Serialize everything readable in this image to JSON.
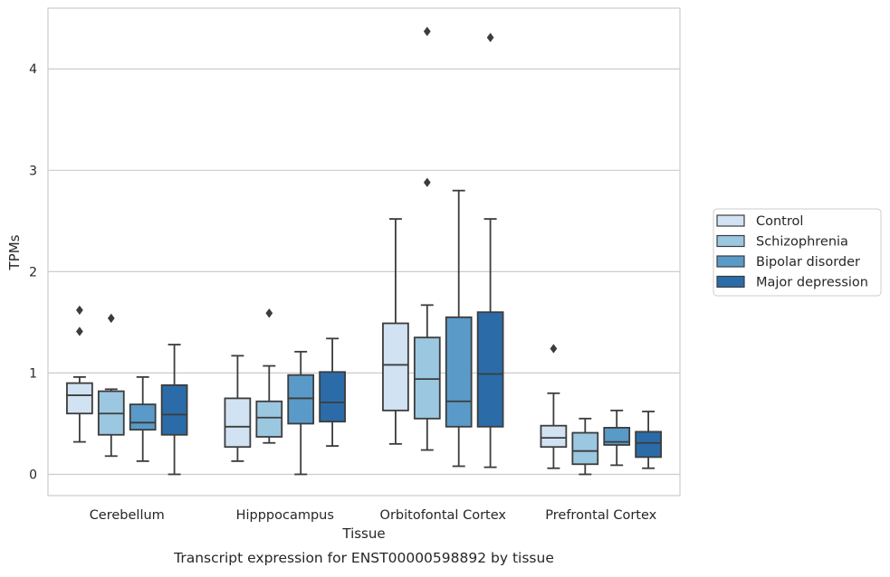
{
  "chart_data": {
    "type": "box",
    "title": "",
    "xlabel": "Tissue",
    "ylabel": "TPMs",
    "caption": "Transcript expression for ENST00000598892 by tissue",
    "ylim": [
      -0.21,
      4.6
    ],
    "yticks": [
      0,
      1,
      2,
      3,
      4
    ],
    "grid": "horizontal",
    "legend_position": "right",
    "categories": [
      "Cerebellum",
      "Hipppocampus",
      "Orbitofontal Cortex",
      "Prefrontal Cortex"
    ],
    "series": [
      {
        "name": "Control",
        "color": "#d1e2f2",
        "boxes": [
          {
            "whisker_low": 0.32,
            "q1": 0.6,
            "median": 0.78,
            "q3": 0.9,
            "whisker_high": 0.96,
            "outliers": [
              1.62,
              1.41
            ]
          },
          {
            "whisker_low": 0.13,
            "q1": 0.27,
            "median": 0.47,
            "q3": 0.75,
            "whisker_high": 1.17,
            "outliers": []
          },
          {
            "whisker_low": 0.3,
            "q1": 0.63,
            "median": 1.08,
            "q3": 1.49,
            "whisker_high": 2.52,
            "outliers": []
          },
          {
            "whisker_low": 0.06,
            "q1": 0.27,
            "median": 0.36,
            "q3": 0.48,
            "whisker_high": 0.8,
            "outliers": [
              1.24
            ]
          }
        ]
      },
      {
        "name": "Schizophrenia",
        "color": "#9bc7e0",
        "boxes": [
          {
            "whisker_low": 0.18,
            "q1": 0.39,
            "median": 0.6,
            "q3": 0.82,
            "whisker_high": 0.84,
            "outliers": [
              1.54
            ]
          },
          {
            "whisker_low": 0.31,
            "q1": 0.37,
            "median": 0.56,
            "q3": 0.72,
            "whisker_high": 1.07,
            "outliers": [
              1.59
            ]
          },
          {
            "whisker_low": 0.24,
            "q1": 0.55,
            "median": 0.94,
            "q3": 1.35,
            "whisker_high": 1.67,
            "outliers": [
              2.88,
              4.37
            ]
          },
          {
            "whisker_low": 0.0,
            "q1": 0.1,
            "median": 0.23,
            "q3": 0.41,
            "whisker_high": 0.55,
            "outliers": []
          }
        ]
      },
      {
        "name": "Bipolar disorder",
        "color": "#5a9ac8",
        "boxes": [
          {
            "whisker_low": 0.13,
            "q1": 0.44,
            "median": 0.51,
            "q3": 0.69,
            "whisker_high": 0.96,
            "outliers": []
          },
          {
            "whisker_low": 0.0,
            "q1": 0.5,
            "median": 0.75,
            "q3": 0.98,
            "whisker_high": 1.21,
            "outliers": []
          },
          {
            "whisker_low": 0.08,
            "q1": 0.47,
            "median": 0.72,
            "q3": 1.55,
            "whisker_high": 2.8,
            "outliers": []
          },
          {
            "whisker_low": 0.09,
            "q1": 0.29,
            "median": 0.32,
            "q3": 0.46,
            "whisker_high": 0.63,
            "outliers": []
          }
        ]
      },
      {
        "name": "Major depression",
        "color": "#2b6ca8",
        "boxes": [
          {
            "whisker_low": 0.0,
            "q1": 0.39,
            "median": 0.59,
            "q3": 0.88,
            "whisker_high": 1.28,
            "outliers": []
          },
          {
            "whisker_low": 0.28,
            "q1": 0.52,
            "median": 0.71,
            "q3": 1.01,
            "whisker_high": 1.34,
            "outliers": []
          },
          {
            "whisker_low": 0.07,
            "q1": 0.47,
            "median": 0.99,
            "q3": 1.6,
            "whisker_high": 2.52,
            "outliers": [
              4.31
            ]
          },
          {
            "whisker_low": 0.06,
            "q1": 0.17,
            "median": 0.31,
            "q3": 0.42,
            "whisker_high": 0.62,
            "outliers": []
          }
        ]
      }
    ]
  }
}
